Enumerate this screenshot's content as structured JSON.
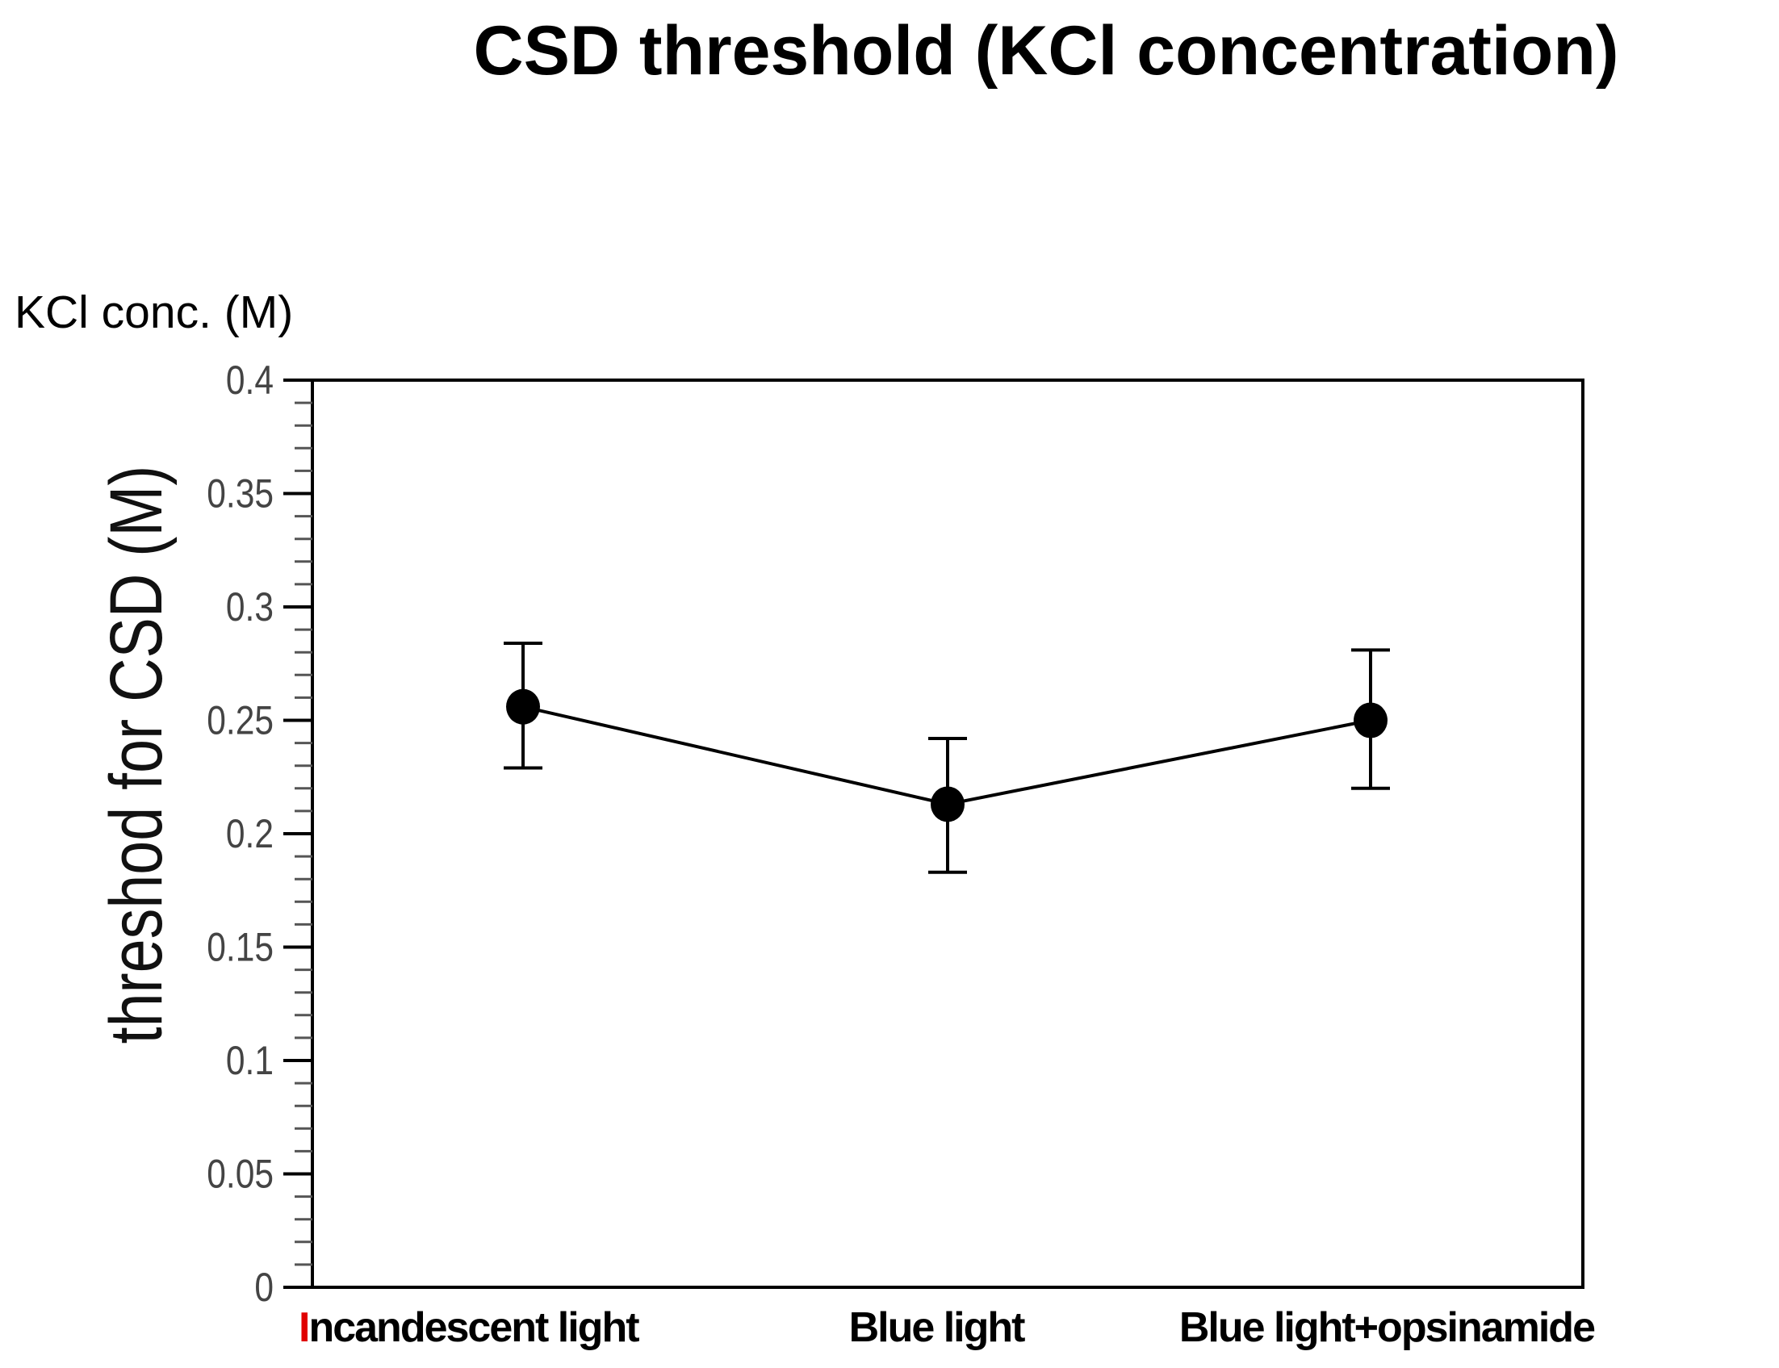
{
  "chart_data": {
    "type": "line",
    "title": "CSD threshold (KCl concentration)",
    "unit_label": "KCl conc. (M)",
    "ylabel": "threshod for CSD (M)",
    "xlabel": "",
    "categories": [
      "Incandescent light",
      "Blue light",
      "Blue light+opsinamide"
    ],
    "first_letter_highlight_color": "#e00000",
    "series": [
      {
        "name": "threshold",
        "values": [
          0.256,
          0.213,
          0.25
        ],
        "error_low": [
          0.229,
          0.183,
          0.22
        ],
        "error_high": [
          0.284,
          0.242,
          0.281
        ]
      }
    ],
    "ylim": [
      0,
      0.4
    ],
    "yticks": [
      0,
      0.05,
      0.1,
      0.15,
      0.2,
      0.25,
      0.3,
      0.35,
      0.4
    ],
    "ytick_labels": [
      "0",
      "0.05",
      "0.1",
      "0.15",
      "0.2",
      "0.25",
      "0.3",
      "0.35",
      "0.4"
    ],
    "minor_tick_step": 0.01,
    "grid": false,
    "legend": "none"
  }
}
